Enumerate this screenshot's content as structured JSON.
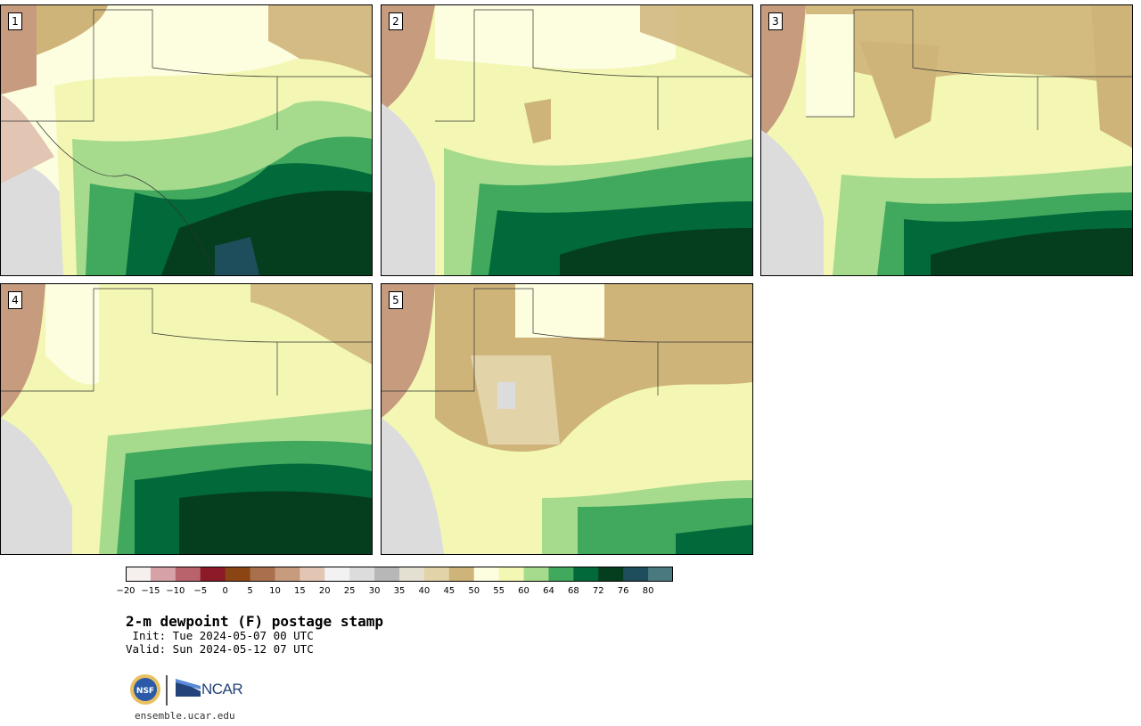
{
  "panels": [
    {
      "label": "1"
    },
    {
      "label": "2"
    },
    {
      "label": "3"
    },
    {
      "label": "4"
    },
    {
      "label": "5"
    }
  ],
  "colorbar": {
    "colors": [
      "#f5efee",
      "#d7a2a7",
      "#b9646d",
      "#8c1a28",
      "#8b4513",
      "#a9704d",
      "#c69b7e",
      "#e2c6b3",
      "#f2f2f2",
      "#dcdcdc",
      "#b7b7b7",
      "#e3e0d2",
      "#e2d4a8",
      "#cfb47a",
      "#fdfde0",
      "#f3f7b3",
      "#a6db8e",
      "#41a95d",
      "#02693a",
      "#053d1f",
      "#1e4e5b",
      "#4a7a80"
    ],
    "tick_labels": [
      "−20",
      "−15",
      "−10",
      "−5",
      "0",
      "5",
      "10",
      "15",
      "20",
      "25",
      "30",
      "35",
      "40",
      "45",
      "50",
      "55",
      "60",
      "64",
      "68",
      "72",
      "76",
      "80"
    ]
  },
  "title": "2-m dewpoint (F) postage stamp",
  "init_line": " Init: Tue 2024-05-07 00 UTC",
  "valid_line": "Valid: Sun 2024-05-12 07 UTC",
  "logos": {
    "nsf_text": "NSF",
    "ncar_text": "NCAR"
  },
  "url": "ensemble.ucar.edu"
}
